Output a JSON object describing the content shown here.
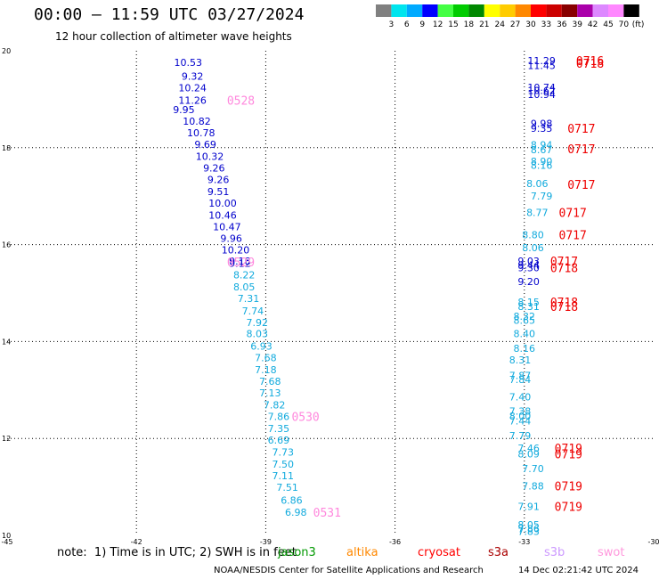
{
  "header": {
    "title": "00:00 – 11:59 UTC 03/27/2024",
    "subtitle": "12 hour collection of altimeter wave heights"
  },
  "colorbar": {
    "labels": [
      "3",
      "6",
      "9",
      "12",
      "15",
      "18",
      "21",
      "24",
      "27",
      "30",
      "33",
      "36",
      "39",
      "42",
      "45",
      "70"
    ],
    "unit": "(ft)",
    "colors": [
      "#808080",
      "#00e5ee",
      "#00aaff",
      "#0000ff",
      "#44ff44",
      "#00cc00",
      "#008800",
      "#ffff00",
      "#ffcc00",
      "#ff8800",
      "#ff0000",
      "#cc0000",
      "#880000",
      "#aa00aa",
      "#dd88ff",
      "#ff88ff",
      "#000000"
    ]
  },
  "footer": {
    "note": "note:  1) Time is in UTC; 2) SWH is in feet",
    "credit": "NOAA/NESDIS Center for Satellite Applications and Research",
    "timestamp": "14 Dec 02:21:42 UTC 2024",
    "satellites": [
      {
        "name": "jason3",
        "color": "#009900"
      },
      {
        "name": "altika",
        "color": "#ff8800"
      },
      {
        "name": "cryosat",
        "color": "#ff0000"
      },
      {
        "name": "s3a",
        "color": "#aa0000"
      },
      {
        "name": "s3b",
        "color": "#cc99ff"
      },
      {
        "name": "swot",
        "color": "#ff99dd"
      }
    ]
  },
  "chart_data": {
    "type": "scatter",
    "xlim": [
      -45,
      -30
    ],
    "ylim": [
      10,
      20
    ],
    "x_ticks": [
      "-45",
      "-42",
      "-39",
      "-36",
      "-33",
      "-30"
    ],
    "y_ticks": [
      "10",
      "12",
      "14",
      "16",
      "18",
      "20"
    ],
    "grid": true,
    "points": [
      {
        "x": -40.8,
        "y": 19.76,
        "label": "10.53",
        "color": "#0000cc"
      },
      {
        "x": -40.7,
        "y": 19.48,
        "label": "9.32",
        "color": "#0000cc"
      },
      {
        "x": -40.7,
        "y": 19.24,
        "label": "10.24",
        "color": "#0000cc"
      },
      {
        "x": -40.7,
        "y": 18.98,
        "label": "11.26",
        "color": "#0000cc"
      },
      {
        "x": -40.9,
        "y": 18.79,
        "label": "9.95",
        "color": "#0000cc"
      },
      {
        "x": -40.6,
        "y": 18.55,
        "label": "10.82",
        "color": "#0000cc"
      },
      {
        "x": -40.5,
        "y": 18.31,
        "label": "10.78",
        "color": "#0000cc"
      },
      {
        "x": -40.4,
        "y": 18.07,
        "label": "9.69",
        "color": "#0000cc"
      },
      {
        "x": -40.3,
        "y": 17.82,
        "label": "10.32",
        "color": "#0000cc"
      },
      {
        "x": -40.2,
        "y": 17.58,
        "label": "9.26",
        "color": "#0000cc"
      },
      {
        "x": -40.1,
        "y": 17.34,
        "label": "9.26",
        "color": "#0000cc"
      },
      {
        "x": -40.1,
        "y": 17.1,
        "label": "9.51",
        "color": "#0000cc"
      },
      {
        "x": -40.0,
        "y": 16.86,
        "label": "10.00",
        "color": "#0000cc"
      },
      {
        "x": -40.0,
        "y": 16.61,
        "label": "10.46",
        "color": "#0000cc"
      },
      {
        "x": -39.9,
        "y": 16.37,
        "label": "10.47",
        "color": "#0000cc"
      },
      {
        "x": -39.8,
        "y": 16.13,
        "label": "9.96",
        "color": "#0000cc"
      },
      {
        "x": -39.7,
        "y": 15.89,
        "label": "10.20",
        "color": "#0000cc"
      },
      {
        "x": -39.6,
        "y": 15.66,
        "label": "9.18",
        "color": "#0000cc"
      },
      {
        "x": -39.6,
        "y": 15.62,
        "label": "9.12",
        "color": "#0000cc"
      },
      {
        "x": -39.5,
        "y": 15.38,
        "label": "8.22",
        "color": "#11aadd"
      },
      {
        "x": -39.5,
        "y": 15.13,
        "label": "8.05",
        "color": "#11aadd"
      },
      {
        "x": -39.4,
        "y": 14.89,
        "label": "7.31",
        "color": "#11aadd"
      },
      {
        "x": -39.3,
        "y": 14.63,
        "label": "7.74",
        "color": "#11aadd"
      },
      {
        "x": -39.2,
        "y": 14.39,
        "label": "7.92",
        "color": "#11aadd"
      },
      {
        "x": -39.2,
        "y": 14.16,
        "label": "8.03",
        "color": "#11aadd"
      },
      {
        "x": -39.1,
        "y": 13.91,
        "label": "6.93",
        "color": "#11aadd"
      },
      {
        "x": -39.0,
        "y": 13.67,
        "label": "7.68",
        "color": "#11aadd"
      },
      {
        "x": -39.0,
        "y": 13.42,
        "label": "7.18",
        "color": "#11aadd"
      },
      {
        "x": -38.9,
        "y": 13.18,
        "label": "7.68",
        "color": "#11aadd"
      },
      {
        "x": -38.9,
        "y": 12.94,
        "label": "7.13",
        "color": "#11aadd"
      },
      {
        "x": -38.8,
        "y": 12.69,
        "label": "7.82",
        "color": "#11aadd"
      },
      {
        "x": -38.7,
        "y": 12.45,
        "label": "7.86",
        "color": "#11aadd"
      },
      {
        "x": -38.7,
        "y": 12.21,
        "label": "7.35",
        "color": "#11aadd"
      },
      {
        "x": -38.7,
        "y": 11.97,
        "label": "6.69",
        "color": "#11aadd"
      },
      {
        "x": -38.6,
        "y": 11.72,
        "label": "7.73",
        "color": "#11aadd"
      },
      {
        "x": -38.6,
        "y": 11.47,
        "label": "7.50",
        "color": "#11aadd"
      },
      {
        "x": -38.6,
        "y": 11.23,
        "label": "7.11",
        "color": "#11aadd"
      },
      {
        "x": -38.5,
        "y": 10.99,
        "label": "7.51",
        "color": "#11aadd"
      },
      {
        "x": -38.4,
        "y": 10.73,
        "label": "6.86",
        "color": "#11aadd"
      },
      {
        "x": -38.3,
        "y": 10.48,
        "label": "6.98",
        "color": "#11aadd"
      },
      {
        "x": -32.6,
        "y": 19.8,
        "label": "11.29",
        "color": "#0000cc"
      },
      {
        "x": -32.6,
        "y": 19.7,
        "label": "11.45",
        "color": "#0000cc"
      },
      {
        "x": -32.6,
        "y": 19.25,
        "label": "10.74",
        "color": "#0000cc"
      },
      {
        "x": -32.6,
        "y": 19.18,
        "label": "10.62",
        "color": "#0000cc"
      },
      {
        "x": -32.6,
        "y": 19.1,
        "label": "10.94",
        "color": "#0000cc"
      },
      {
        "x": -32.6,
        "y": 18.5,
        "label": "9.98",
        "color": "#0000cc"
      },
      {
        "x": -32.6,
        "y": 18.4,
        "label": "9.35",
        "color": "#0000cc"
      },
      {
        "x": -32.6,
        "y": 18.06,
        "label": "8.94",
        "color": "#11aadd"
      },
      {
        "x": -32.6,
        "y": 17.96,
        "label": "8.67",
        "color": "#11aadd"
      },
      {
        "x": -32.6,
        "y": 17.72,
        "label": "8.90",
        "color": "#11aadd"
      },
      {
        "x": -32.6,
        "y": 17.64,
        "label": "8.16",
        "color": "#11aadd"
      },
      {
        "x": -32.7,
        "y": 17.26,
        "label": "8.06",
        "color": "#11aadd"
      },
      {
        "x": -32.6,
        "y": 17.0,
        "label": "7.79",
        "color": "#11aadd"
      },
      {
        "x": -32.7,
        "y": 16.66,
        "label": "8.77",
        "color": "#11aadd"
      },
      {
        "x": -32.8,
        "y": 16.2,
        "label": "8.80",
        "color": "#11aadd"
      },
      {
        "x": -32.8,
        "y": 15.94,
        "label": "8.06",
        "color": "#11aadd"
      },
      {
        "x": -32.9,
        "y": 15.66,
        "label": "9.03",
        "color": "#0000cc"
      },
      {
        "x": -32.9,
        "y": 15.58,
        "label": "9.44",
        "color": "#0000cc"
      },
      {
        "x": -32.9,
        "y": 15.52,
        "label": "9.30",
        "color": "#0000cc"
      },
      {
        "x": -32.9,
        "y": 15.24,
        "label": "9.20",
        "color": "#0000cc"
      },
      {
        "x": -32.9,
        "y": 14.82,
        "label": "8.15",
        "color": "#11aadd"
      },
      {
        "x": -32.9,
        "y": 14.72,
        "label": "8.31",
        "color": "#11aadd"
      },
      {
        "x": -33.0,
        "y": 14.52,
        "label": "8.32",
        "color": "#11aadd"
      },
      {
        "x": -33.0,
        "y": 14.44,
        "label": "8.65",
        "color": "#11aadd"
      },
      {
        "x": -33.0,
        "y": 14.16,
        "label": "8.40",
        "color": "#11aadd"
      },
      {
        "x": -33.0,
        "y": 13.86,
        "label": "8.16",
        "color": "#11aadd"
      },
      {
        "x": -33.1,
        "y": 13.62,
        "label": "8.31",
        "color": "#11aadd"
      },
      {
        "x": -33.1,
        "y": 13.3,
        "label": "7.87",
        "color": "#11aadd"
      },
      {
        "x": -33.1,
        "y": 13.22,
        "label": "7.84",
        "color": "#11aadd"
      },
      {
        "x": -33.1,
        "y": 12.86,
        "label": "7.40",
        "color": "#11aadd"
      },
      {
        "x": -33.1,
        "y": 12.56,
        "label": "7.38",
        "color": "#11aadd"
      },
      {
        "x": -33.1,
        "y": 12.46,
        "label": "8.00",
        "color": "#11aadd"
      },
      {
        "x": -33.1,
        "y": 12.36,
        "label": "7.44",
        "color": "#11aadd"
      },
      {
        "x": -33.1,
        "y": 12.06,
        "label": "7.79",
        "color": "#11aadd"
      },
      {
        "x": -32.9,
        "y": 11.8,
        "label": "7.46",
        "color": "#11aadd"
      },
      {
        "x": -32.9,
        "y": 11.68,
        "label": "8.09",
        "color": "#11aadd"
      },
      {
        "x": -32.8,
        "y": 11.38,
        "label": "7.70",
        "color": "#11aadd"
      },
      {
        "x": -32.8,
        "y": 11.02,
        "label": "7.88",
        "color": "#11aadd"
      },
      {
        "x": -32.9,
        "y": 10.6,
        "label": "7.91",
        "color": "#11aadd"
      },
      {
        "x": -32.9,
        "y": 10.22,
        "label": "8.05",
        "color": "#11aadd"
      },
      {
        "x": -32.9,
        "y": 10.14,
        "label": "7.86",
        "color": "#11aadd"
      },
      {
        "x": -32.9,
        "y": 10.08,
        "label": "7.83",
        "color": "#11aadd"
      }
    ],
    "pass_labels": [
      {
        "x": -39.9,
        "y": 18.98,
        "label": "0528",
        "color": "#ff88dd"
      },
      {
        "x": -39.9,
        "y": 15.64,
        "label": "0529",
        "color": "#ff88dd"
      },
      {
        "x": -38.4,
        "y": 12.45,
        "label": "0530",
        "color": "#ff88dd"
      },
      {
        "x": -37.9,
        "y": 10.48,
        "label": "0531",
        "color": "#ff88dd"
      },
      {
        "x": -31.8,
        "y": 19.8,
        "label": "0716",
        "color": "#ee0000"
      },
      {
        "x": -31.8,
        "y": 19.74,
        "label": "0718",
        "color": "#ee0000"
      },
      {
        "x": -32.0,
        "y": 18.4,
        "label": "0717",
        "color": "#ee0000"
      },
      {
        "x": -32.0,
        "y": 17.98,
        "label": "0717",
        "color": "#ee0000"
      },
      {
        "x": -32.0,
        "y": 17.24,
        "label": "0717",
        "color": "#ee0000"
      },
      {
        "x": -32.2,
        "y": 16.66,
        "label": "0717",
        "color": "#ee0000"
      },
      {
        "x": -32.2,
        "y": 16.2,
        "label": "0717",
        "color": "#ee0000"
      },
      {
        "x": -32.4,
        "y": 15.66,
        "label": "0717",
        "color": "#ee0000"
      },
      {
        "x": -32.4,
        "y": 15.52,
        "label": "0718",
        "color": "#ee0000"
      },
      {
        "x": -32.4,
        "y": 14.82,
        "label": "0718",
        "color": "#ee0000"
      },
      {
        "x": -32.4,
        "y": 14.72,
        "label": "0718",
        "color": "#ee0000"
      },
      {
        "x": -32.3,
        "y": 11.8,
        "label": "0719",
        "color": "#ee0000"
      },
      {
        "x": -32.3,
        "y": 11.68,
        "label": "0719",
        "color": "#ee0000"
      },
      {
        "x": -32.3,
        "y": 11.02,
        "label": "0719",
        "color": "#ee0000"
      },
      {
        "x": -32.3,
        "y": 10.6,
        "label": "0719",
        "color": "#ee0000"
      }
    ]
  }
}
